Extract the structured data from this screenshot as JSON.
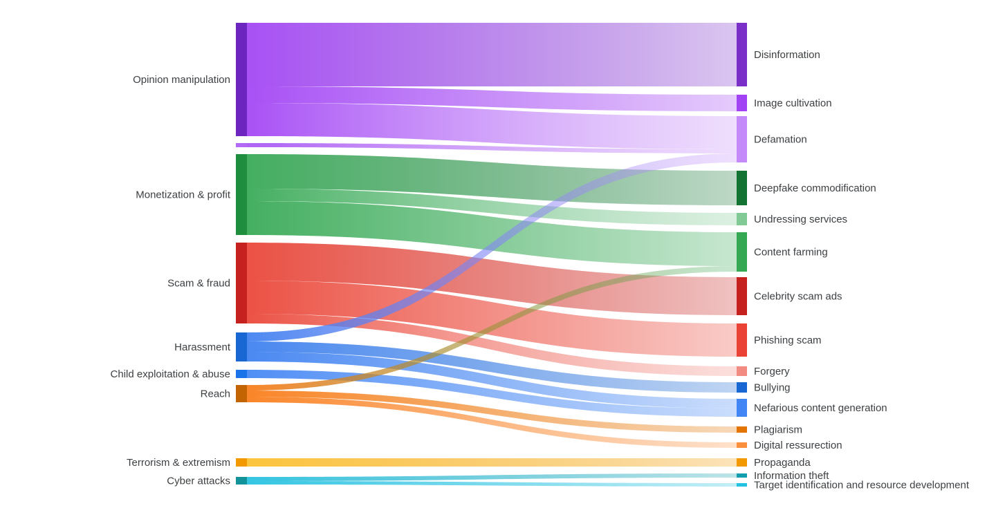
{
  "chart_data": {
    "type": "sankey",
    "nodes": [
      {
        "name": "Opinion manipulation",
        "column": 0,
        "color": "#6c25be",
        "flow_color": "#a142f4"
      },
      {
        "name": null,
        "column": 0,
        "color": "#b36af5",
        "flow_color": "#a856f4"
      },
      {
        "name": "Monetization & profit",
        "column": 0,
        "color": "#1e8e3e",
        "flow_color": "#34a853"
      },
      {
        "name": "Scam & fraud",
        "column": 0,
        "color": "#c5221f",
        "flow_color": "#ea4335"
      },
      {
        "name": "Harassment",
        "column": 0,
        "color": "#1967d2",
        "flow_color": "#3b7ff0"
      },
      {
        "name": "Child exploitation & abuse",
        "column": 0,
        "color": "#1a73e8",
        "flow_color": "#4285f4"
      },
      {
        "name": "Reach",
        "column": 0,
        "color": "#c26401",
        "flow_color": "#fa7b17"
      },
      {
        "name": "Terrorism & extremism",
        "column": 0,
        "color": "#f29900",
        "flow_color": "#fbc02d"
      },
      {
        "name": "Cyber attacks",
        "column": 0,
        "color": "#12939a",
        "flow_color": "#24c1e0"
      },
      {
        "name": "Disinformation",
        "column": 1,
        "color": "#7b2fc9"
      },
      {
        "name": "Image cultivation",
        "column": 1,
        "color": "#a142f4"
      },
      {
        "name": "Defamation",
        "column": 1,
        "color": "#c58af9"
      },
      {
        "name": "Deepfake commodification",
        "column": 1,
        "color": "#137333"
      },
      {
        "name": "Undressing services",
        "column": 1,
        "color": "#81c995"
      },
      {
        "name": "Content farming",
        "column": 1,
        "color": "#34a853"
      },
      {
        "name": "Celebrity scam ads",
        "column": 1,
        "color": "#c5221f"
      },
      {
        "name": "Phishing scam",
        "column": 1,
        "color": "#ea4335"
      },
      {
        "name": "Forgery",
        "column": 1,
        "color": "#f28b82"
      },
      {
        "name": "Bullying",
        "column": 1,
        "color": "#1967d2"
      },
      {
        "name": "Nefarious content generation",
        "column": 1,
        "color": "#4285f4"
      },
      {
        "name": "Plagiarism",
        "column": 1,
        "color": "#e37400"
      },
      {
        "name": "Digital ressurection",
        "column": 1,
        "color": "#fa903e"
      },
      {
        "name": "Propaganda",
        "column": 1,
        "color": "#f29900"
      },
      {
        "name": "Information theft",
        "column": 1,
        "color": "#129eaf"
      },
      {
        "name": "Target identification and resource development",
        "column": 1,
        "color": "#24c1e0"
      }
    ],
    "links": [
      {
        "source": 0,
        "target": 9,
        "value": 92
      },
      {
        "source": 0,
        "target": 10,
        "value": 24
      },
      {
        "source": 0,
        "target": 11,
        "value": 48
      },
      {
        "source": 1,
        "target": 11,
        "value": 6
      },
      {
        "source": 2,
        "target": 12,
        "value": 50
      },
      {
        "source": 2,
        "target": 13,
        "value": 18
      },
      {
        "source": 2,
        "target": 14,
        "value": 49
      },
      {
        "source": 3,
        "target": 15,
        "value": 55
      },
      {
        "source": 3,
        "target": 16,
        "value": 48
      },
      {
        "source": 3,
        "target": 17,
        "value": 14
      },
      {
        "source": 4,
        "target": 11,
        "value": 13
      },
      {
        "source": 4,
        "target": 18,
        "value": 15
      },
      {
        "source": 4,
        "target": 19,
        "value": 14
      },
      {
        "source": 5,
        "target": 19,
        "value": 12
      },
      {
        "source": 6,
        "target": 14,
        "value": 8
      },
      {
        "source": 6,
        "target": 20,
        "value": 9
      },
      {
        "source": 6,
        "target": 21,
        "value": 8
      },
      {
        "source": 7,
        "target": 22,
        "value": 12
      },
      {
        "source": 8,
        "target": 23,
        "value": 6
      },
      {
        "source": 8,
        "target": 24,
        "value": 5
      }
    ]
  }
}
